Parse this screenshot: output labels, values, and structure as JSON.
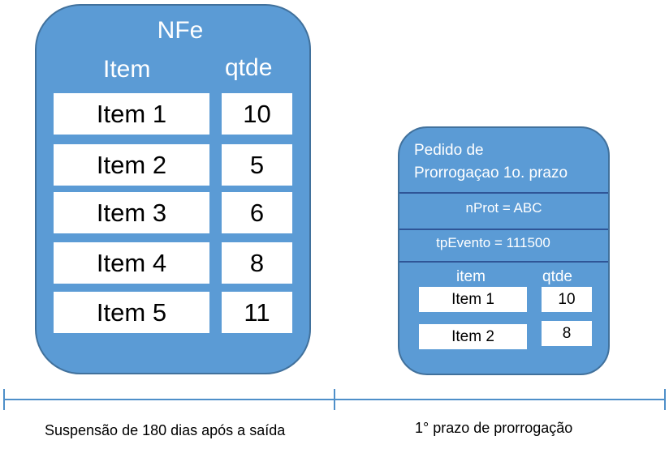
{
  "nfe": {
    "title": "NFe",
    "col_item": "Item",
    "col_qtde": "qtde",
    "rows": [
      {
        "item": "Item 1",
        "qtde": "10"
      },
      {
        "item": "Item 2",
        "qtde": "5"
      },
      {
        "item": "Item 3",
        "qtde": "6"
      },
      {
        "item": "Item 4",
        "qtde": "8"
      },
      {
        "item": "Item 5",
        "qtde": "11"
      }
    ]
  },
  "pedido": {
    "title_line1": "Pedido de",
    "title_line2": "Prorrogaçao 1o. prazo",
    "nprot": "nProt = ABC",
    "tpevento": "tpEvento = 111500",
    "col_item": "item",
    "col_qtde": "qtde",
    "rows": [
      {
        "item": "Item 1",
        "qtde": "10"
      },
      {
        "item": "Item 2",
        "qtde": "8"
      }
    ]
  },
  "timeline": {
    "segment1_label": "Suspensão de 180 dias após a saída",
    "segment2_label": "1° prazo de prorrogação"
  },
  "colors": {
    "panel_fill": "#5b9bd5",
    "panel_border": "#41719c",
    "separator": "#2f5597",
    "axis": "#4e8fc9"
  }
}
